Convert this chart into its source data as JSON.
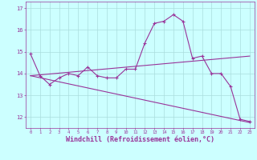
{
  "x": [
    0,
    1,
    2,
    3,
    4,
    5,
    6,
    7,
    8,
    9,
    10,
    11,
    12,
    13,
    14,
    15,
    16,
    17,
    18,
    19,
    20,
    21,
    22,
    23
  ],
  "line1": [
    14.9,
    13.9,
    13.5,
    13.8,
    14.0,
    13.9,
    14.3,
    13.9,
    13.8,
    13.8,
    14.2,
    14.2,
    15.4,
    16.3,
    16.4,
    16.7,
    16.4,
    14.7,
    14.8,
    14.0,
    14.0,
    13.4,
    11.9,
    11.8
  ],
  "line2_x": [
    0,
    23
  ],
  "line2_y": [
    13.9,
    14.8
  ],
  "line3_x": [
    0,
    23
  ],
  "line3_y": [
    13.9,
    11.75
  ],
  "line_color": "#993399",
  "bg_color": "#ccffff",
  "grid_color": "#aadddd",
  "xlabel": "Windchill (Refroidissement éolien,°C)",
  "xlabel_fontsize": 6,
  "ylabel_values": [
    12,
    13,
    14,
    15,
    16
  ],
  "xlim": [
    -0.5,
    23.5
  ],
  "ylim": [
    11.5,
    17.3
  ],
  "xtick_labels": [
    "0",
    "1",
    "2",
    "3",
    "4",
    "5",
    "6",
    "7",
    "8",
    "9",
    "10",
    "11",
    "12",
    "13",
    "14",
    "15",
    "16",
    "17",
    "18",
    "19",
    "20",
    "21",
    "22",
    "23"
  ]
}
